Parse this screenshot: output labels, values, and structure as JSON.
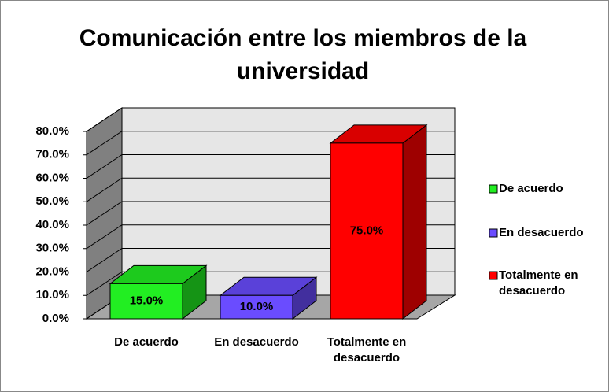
{
  "chart_data": {
    "type": "bar3d",
    "title": "Comunicación entre los miembros de la universidad",
    "categories": [
      "De acuerdo",
      "En desacuerdo",
      "Totalmente en desacuerdo"
    ],
    "values": [
      15,
      10,
      75
    ],
    "value_labels": [
      "15.0%",
      "10.0%",
      "75.0%"
    ],
    "colors": [
      "#22ee22",
      "#6a4cff",
      "#ff0000"
    ],
    "ylim": [
      0,
      80
    ],
    "yticks": [
      {
        "value": 0,
        "label": "0.0%"
      },
      {
        "value": 10,
        "label": "10.0%"
      },
      {
        "value": 20,
        "label": "20.0%"
      },
      {
        "value": 30,
        "label": "30.0%"
      },
      {
        "value": 40,
        "label": "40.0%"
      },
      {
        "value": 50,
        "label": "50.0%"
      },
      {
        "value": 60,
        "label": "60.0%"
      },
      {
        "value": 70,
        "label": "70.0%"
      },
      {
        "value": 80,
        "label": "80.0%"
      }
    ],
    "grid": true,
    "legend": "right"
  }
}
